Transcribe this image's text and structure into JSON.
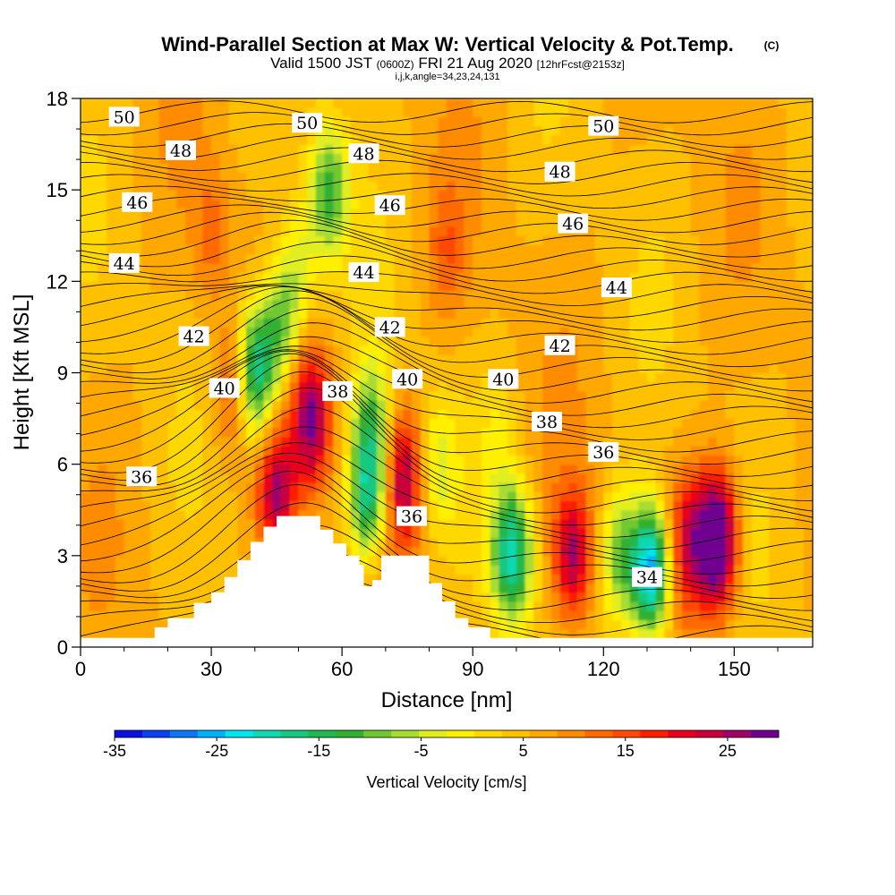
{
  "title": "Wind-Parallel Section at Max W: Vertical Velocity & Pot.Temp.",
  "copyright_mark": "(C)",
  "subtitle_valid": "Valid 1500 JST",
  "subtitle_utc": "(0600Z)",
  "subtitle_date": "FRI 21 Aug 2020",
  "subtitle_forecast": "[12hrFcst@2153z]",
  "subtitle_indices": "i,j,k,angle=34,23,24,131",
  "colorbar_label": "Vertical Velocity [cm/s]",
  "colorbar_ticks": [
    "-35",
    "-25",
    "-15",
    "-5",
    "5",
    "15",
    "25"
  ],
  "colors": {
    "palette": [
      "#0a10e0",
      "#0a40f0",
      "#0a78f5",
      "#00b0f8",
      "#00e6f0",
      "#10d8b0",
      "#18c880",
      "#20b850",
      "#30b030",
      "#70c830",
      "#a8dc30",
      "#e0ee20",
      "#fff000",
      "#ffd800",
      "#ffc000",
      "#ffa800",
      "#ff8c00",
      "#ff6a00",
      "#ff4a00",
      "#ff1e00",
      "#e8001a",
      "#c8003a",
      "#a0006a",
      "#700090"
    ],
    "terrain": "#ffffff",
    "contour": "#000000"
  },
  "chart_data": {
    "type": "heatmap",
    "description_fields": "vertical velocity (filled) with potential temperature contours",
    "xlabel": "Distance [nm]",
    "ylabel": "Height [Kft MSL]",
    "xlim": [
      0,
      168
    ],
    "ylim": [
      0,
      18
    ],
    "xticks": [
      0,
      30,
      60,
      90,
      120,
      150
    ],
    "yticks": [
      0,
      3,
      6,
      9,
      12,
      15,
      18
    ],
    "color_scale": {
      "min": -35,
      "max": 30,
      "step": 2.5
    },
    "terrain_profile": {
      "x": [
        0,
        0,
        14,
        17,
        17,
        20,
        20,
        26,
        26,
        30,
        30,
        33,
        33,
        36,
        36,
        39,
        39,
        42,
        42,
        45,
        45,
        48,
        48,
        55,
        55,
        58,
        58,
        61,
        61,
        64,
        64,
        65,
        65,
        67,
        67,
        69,
        69,
        71,
        71,
        80,
        80,
        83,
        83,
        86,
        86,
        89,
        89,
        94,
        94,
        97,
        97,
        168,
        168
      ],
      "height": [
        0,
        0.3,
        0.3,
        0.3,
        0.65,
        0.65,
        0.95,
        0.95,
        1.45,
        1.45,
        1.8,
        1.8,
        2.3,
        2.3,
        2.85,
        2.85,
        3.45,
        3.45,
        3.95,
        3.95,
        4.3,
        4.3,
        4.3,
        4.3,
        3.85,
        3.85,
        3.4,
        3.4,
        3.0,
        3.0,
        2.7,
        2.7,
        2.0,
        2.0,
        2.2,
        2.2,
        3.0,
        3.0,
        3.0,
        3.0,
        2.1,
        2.1,
        1.5,
        1.5,
        0.95,
        0.95,
        0.65,
        0.65,
        0.3,
        0.3,
        0.3,
        0.3,
        0
      ]
    },
    "vertical_velocity_features": [
      {
        "x": 53,
        "height": 7.5,
        "w": 20
      },
      {
        "x": 45,
        "height": 5.0,
        "w": 18
      },
      {
        "x": 74,
        "height": 5.5,
        "w": 18
      },
      {
        "x": 113,
        "height": 3.0,
        "w": 18
      },
      {
        "x": 146,
        "height": 3.5,
        "w": 30
      },
      {
        "x": 139,
        "height": 3.5,
        "w": 14
      },
      {
        "x": 35,
        "height": 8.5,
        "w": 10
      },
      {
        "x": 30,
        "height": 13.5,
        "w": 6
      },
      {
        "x": 84,
        "height": 13.0,
        "w": 6
      },
      {
        "x": 40,
        "height": 9.0,
        "w": -24
      },
      {
        "x": 46,
        "height": 10.5,
        "w": -14
      },
      {
        "x": 66,
        "height": 5.0,
        "w": -22
      },
      {
        "x": 67,
        "height": 7.5,
        "w": -12
      },
      {
        "x": 99,
        "height": 3.0,
        "w": -24
      },
      {
        "x": 131,
        "height": 2.5,
        "w": -30
      },
      {
        "x": 57,
        "height": 15.0,
        "w": -16
      },
      {
        "x": 50,
        "height": 12.5,
        "w": -8
      },
      {
        "x": 82,
        "height": 6.0,
        "w": -8
      },
      {
        "x": 124,
        "height": 3.0,
        "w": -14
      },
      {
        "x": 96,
        "height": 7.0,
        "w": -4
      }
    ],
    "potential_temperature_contour_labels": [
      {
        "label": "50",
        "x": 10,
        "height": 17.4
      },
      {
        "label": "50",
        "x": 52,
        "height": 17.2
      },
      {
        "label": "50",
        "x": 120,
        "height": 17.1
      },
      {
        "label": "48",
        "x": 23,
        "height": 16.3
      },
      {
        "label": "48",
        "x": 65,
        "height": 16.2
      },
      {
        "label": "48",
        "x": 110,
        "height": 15.6
      },
      {
        "label": "46",
        "x": 13,
        "height": 14.6
      },
      {
        "label": "46",
        "x": 71,
        "height": 14.5
      },
      {
        "label": "46",
        "x": 113,
        "height": 13.9
      },
      {
        "label": "44",
        "x": 10,
        "height": 12.6
      },
      {
        "label": "44",
        "x": 65,
        "height": 12.3
      },
      {
        "label": "44",
        "x": 123,
        "height": 11.8
      },
      {
        "label": "42",
        "x": 26,
        "height": 10.2
      },
      {
        "label": "42",
        "x": 71,
        "height": 10.5
      },
      {
        "label": "42",
        "x": 110,
        "height": 9.9
      },
      {
        "label": "40",
        "x": 33,
        "height": 8.5
      },
      {
        "label": "40",
        "x": 75,
        "height": 8.8
      },
      {
        "label": "40",
        "x": 97,
        "height": 8.8
      },
      {
        "label": "38",
        "x": 59,
        "height": 8.4
      },
      {
        "label": "38",
        "x": 107,
        "height": 7.4
      },
      {
        "label": "36",
        "x": 14,
        "height": 5.6
      },
      {
        "label": "36",
        "x": 76,
        "height": 4.3
      },
      {
        "label": "36",
        "x": 120,
        "height": 6.4
      },
      {
        "label": "34",
        "x": 130,
        "height": 2.3
      }
    ]
  }
}
